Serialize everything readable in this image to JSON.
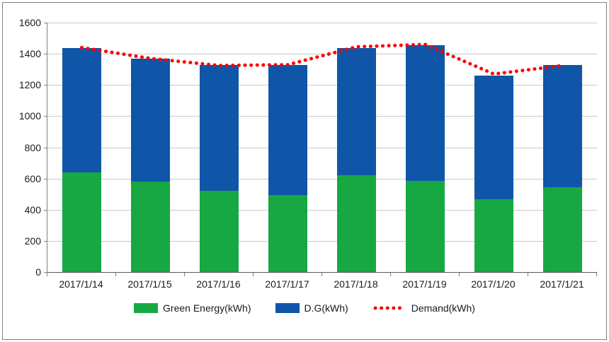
{
  "chart_data": {
    "type": "bar",
    "subtype": "stacked-bars-with-dotted-line",
    "title": "",
    "xlabel": "",
    "ylabel": "",
    "ylim": [
      0,
      1600
    ],
    "ytick_step": 200,
    "yticks": [
      0,
      200,
      400,
      600,
      800,
      1000,
      1200,
      1400,
      1600
    ],
    "grid": true,
    "legend_position": "bottom",
    "categories": [
      "2017/1/14",
      "2017/1/15",
      "2017/1/16",
      "2017/1/17",
      "2017/1/18",
      "2017/1/19",
      "2017/1/20",
      "2017/1/21"
    ],
    "series": [
      {
        "name": "Green Energy(kWh)",
        "type": "bar",
        "color": "#17a843",
        "values": [
          640,
          580,
          520,
          495,
          620,
          585,
          465,
          545
        ]
      },
      {
        "name": "D.G(kWh)",
        "type": "bar",
        "color": "#0f56a8",
        "values": [
          795,
          790,
          810,
          835,
          815,
          870,
          795,
          785
        ]
      },
      {
        "name": "Demand(kWh)",
        "type": "line",
        "style": "dotted",
        "color": "#ff0000",
        "values": [
          1440,
          1370,
          1325,
          1330,
          1445,
          1460,
          1270,
          1325
        ]
      }
    ],
    "colors": {
      "gridline": "#c9c9c9",
      "axis": "#808080",
      "frame_border": "#808080",
      "text": "#1a1a1a"
    }
  }
}
